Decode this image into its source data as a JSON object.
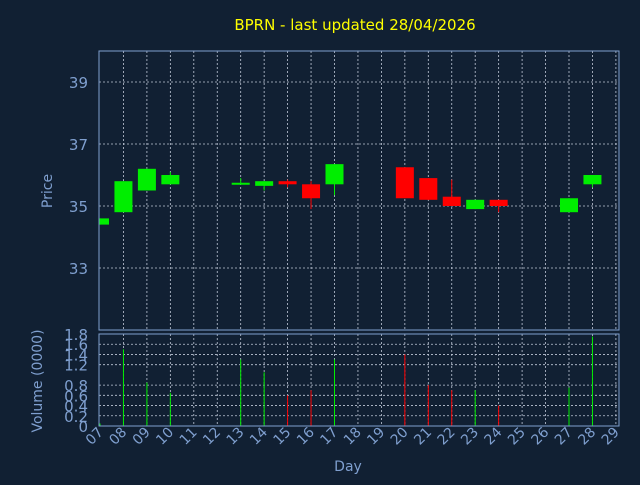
{
  "chart_data": {
    "type": "candlestick",
    "title": "BPRN - last updated 28/04/2026",
    "colors": {
      "background": "#112033",
      "title": "#ffff00",
      "axis_text": "#7f9fcf",
      "frame": "#7f9fcf",
      "grid": "#c0c8d8",
      "up": "#00ee00",
      "down": "#ff0000"
    },
    "price_panel": {
      "ylabel": "Price",
      "ylim": [
        31,
        40
      ],
      "yticks": [
        33,
        35,
        37,
        39
      ],
      "grid": true
    },
    "volume_panel": {
      "ylabel": "Volume (0000)",
      "ylim": [
        0,
        1.8
      ],
      "yticks": [
        0,
        0.2,
        0.4,
        0.6,
        0.8,
        1.2,
        1.4,
        1.6,
        1.8
      ],
      "ytick_labels": [
        "0",
        "0.2",
        "0.4",
        "0.6",
        "0.8",
        "1.2",
        "1.4",
        "1.6",
        "1.8"
      ],
      "grid": true
    },
    "xlabel": "Day",
    "x_ticks": [
      "07",
      "08",
      "09",
      "10",
      "11",
      "12",
      "13",
      "14",
      "15",
      "16",
      "17",
      "18",
      "19",
      "20",
      "21",
      "22",
      "23",
      "24",
      "25",
      "26",
      "27",
      "28",
      "29"
    ],
    "candles": [
      {
        "day": "07",
        "open": 34.4,
        "close": 34.6,
        "high": 34.6,
        "low": 34.4,
        "volume": 0.05,
        "dir": "up"
      },
      {
        "day": "08",
        "open": 34.8,
        "close": 35.8,
        "high": 35.8,
        "low": 34.8,
        "volume": 1.5,
        "dir": "up"
      },
      {
        "day": "09",
        "open": 35.5,
        "close": 36.2,
        "high": 36.2,
        "low": 35.5,
        "volume": 0.85,
        "dir": "up"
      },
      {
        "day": "10",
        "open": 35.7,
        "close": 36.0,
        "high": 36.1,
        "low": 35.7,
        "volume": 0.65,
        "dir": "up"
      },
      {
        "day": "13",
        "open": 35.7,
        "close": 35.75,
        "high": 35.9,
        "low": 35.7,
        "volume": 1.3,
        "dir": "up"
      },
      {
        "day": "14",
        "open": 35.65,
        "close": 35.8,
        "high": 35.8,
        "low": 35.5,
        "volume": 1.05,
        "dir": "up"
      },
      {
        "day": "15",
        "open": 35.8,
        "close": 35.7,
        "high": 35.85,
        "low": 35.6,
        "volume": 0.6,
        "dir": "down"
      },
      {
        "day": "16",
        "open": 35.7,
        "close": 35.25,
        "high": 35.8,
        "low": 34.9,
        "volume": 0.7,
        "dir": "down"
      },
      {
        "day": "17",
        "open": 35.7,
        "close": 36.35,
        "high": 36.35,
        "low": 35.35,
        "volume": 1.3,
        "dir": "up"
      },
      {
        "day": "20",
        "open": 36.25,
        "close": 35.25,
        "high": 36.25,
        "low": 35.25,
        "volume": 1.4,
        "dir": "down"
      },
      {
        "day": "21",
        "open": 35.9,
        "close": 35.2,
        "high": 35.9,
        "low": 35.2,
        "volume": 0.8,
        "dir": "down"
      },
      {
        "day": "22",
        "open": 35.3,
        "close": 35.0,
        "high": 35.85,
        "low": 35.0,
        "volume": 0.7,
        "dir": "down"
      },
      {
        "day": "23",
        "open": 34.9,
        "close": 35.2,
        "high": 35.2,
        "low": 34.9,
        "volume": 0.7,
        "dir": "up"
      },
      {
        "day": "24",
        "open": 35.2,
        "close": 35.0,
        "high": 35.2,
        "low": 34.8,
        "volume": 0.4,
        "dir": "down"
      },
      {
        "day": "27",
        "open": 34.8,
        "close": 35.25,
        "high": 35.25,
        "low": 34.8,
        "volume": 0.75,
        "dir": "up"
      },
      {
        "day": "28",
        "open": 35.7,
        "close": 36.0,
        "high": 36.0,
        "low": 35.6,
        "volume": 1.75,
        "dir": "up"
      }
    ]
  }
}
